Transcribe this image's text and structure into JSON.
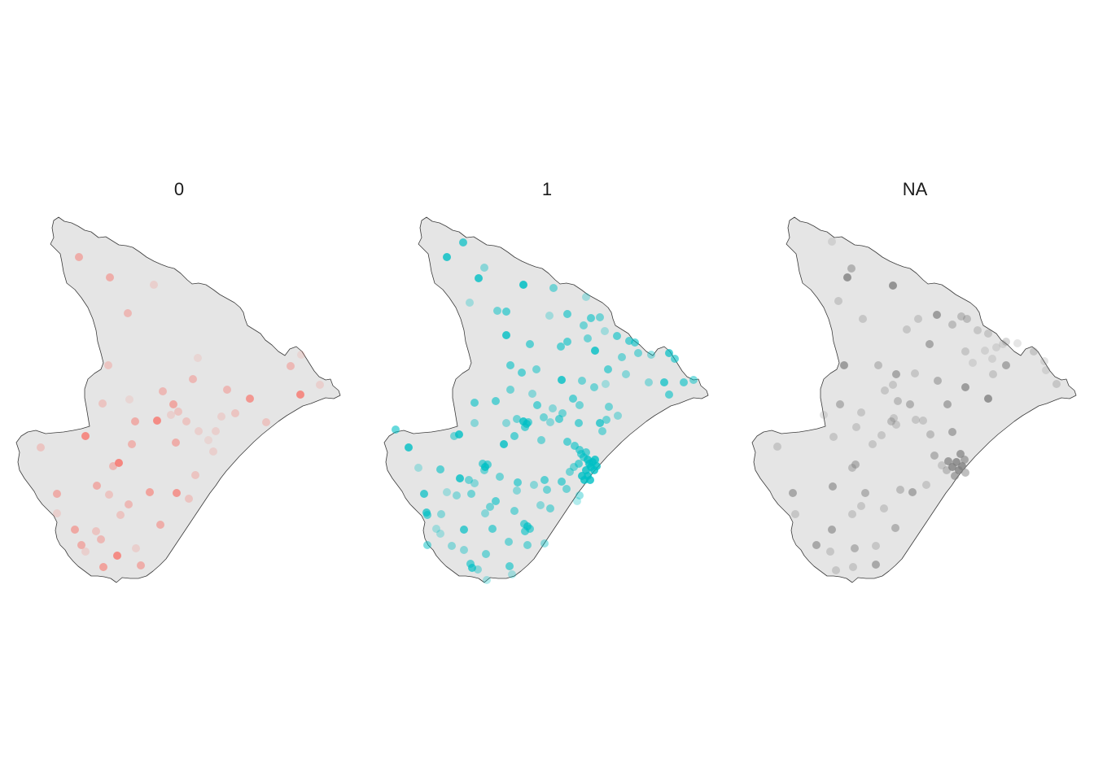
{
  "figure": {
    "background": "#ffffff",
    "region_fill": "#e5e5e5",
    "region_stroke": "#3a3a3a"
  },
  "panels": [
    {
      "title": "0",
      "color": "#f8766d",
      "points": [
        [
          97,
          316,
          0.5
        ],
        [
          135,
          341,
          0.5
        ],
        [
          189,
          350,
          0.2
        ],
        [
          157,
          385,
          0.4
        ],
        [
          133,
          449,
          0.3
        ],
        [
          243,
          440,
          0.15
        ],
        [
          237,
          466,
          0.4
        ],
        [
          200,
          481,
          0.4
        ],
        [
          279,
          479,
          0.4
        ],
        [
          307,
          490,
          0.7
        ],
        [
          357,
          450,
          0.4
        ],
        [
          370,
          436,
          0.15
        ],
        [
          369,
          485,
          0.8
        ],
        [
          393,
          473,
          0.2
        ],
        [
          126,
          496,
          0.3
        ],
        [
          159,
          491,
          0.15
        ],
        [
          213,
          497,
          0.55
        ],
        [
          219,
          506,
          0.3
        ],
        [
          193,
          517,
          0.8
        ],
        [
          166,
          518,
          0.5
        ],
        [
          210,
          510,
          0.2
        ],
        [
          229,
          518,
          0.3
        ],
        [
          244,
          530,
          0.2
        ],
        [
          265,
          530,
          0.2
        ],
        [
          272,
          512,
          0.2
        ],
        [
          289,
          508,
          0.3
        ],
        [
          327,
          519,
          0.3
        ],
        [
          105,
          536,
          0.8
        ],
        [
          162,
          546,
          0.45
        ],
        [
          216,
          544,
          0.5
        ],
        [
          256,
          541,
          0.15
        ],
        [
          262,
          555,
          0.2
        ],
        [
          146,
          569,
          0.85
        ],
        [
          139,
          573,
          0.4
        ],
        [
          240,
          584,
          0.3
        ],
        [
          50,
          550,
          0.3
        ],
        [
          119,
          597,
          0.5
        ],
        [
          134,
          608,
          0.3
        ],
        [
          70,
          607,
          0.5
        ],
        [
          184,
          605,
          0.6
        ],
        [
          217,
          606,
          0.7
        ],
        [
          232,
          613,
          0.3
        ],
        [
          158,
          620,
          0.4
        ],
        [
          70,
          631,
          0.2
        ],
        [
          148,
          633,
          0.3
        ],
        [
          197,
          645,
          0.5
        ],
        [
          124,
          663,
          0.4
        ],
        [
          92,
          651,
          0.55
        ],
        [
          118,
          653,
          0.3
        ],
        [
          167,
          674,
          0.2
        ],
        [
          100,
          670,
          0.5
        ],
        [
          144,
          683,
          0.8
        ],
        [
          105,
          678,
          0.2
        ],
        [
          127,
          697,
          0.6
        ],
        [
          173,
          695,
          0.5
        ]
      ]
    },
    {
      "title": "1",
      "color": "#00bfc4",
      "points": [
        [
          569,
          298,
          0.7
        ],
        [
          549,
          316,
          0.8
        ],
        [
          595,
          329,
          0.4
        ],
        [
          588,
          342,
          0.8
        ],
        [
          643,
          350,
          0.85
        ],
        [
          680,
          354,
          0.5
        ],
        [
          577,
          372,
          0.3
        ],
        [
          611,
          382,
          0.5
        ],
        [
          622,
          383,
          0.6
        ],
        [
          675,
          388,
          0.3
        ],
        [
          697,
          386,
          0.6
        ],
        [
          720,
          365,
          0.3
        ],
        [
          726,
          391,
          0.6
        ],
        [
          737,
          390,
          0.5
        ],
        [
          717,
          400,
          0.5
        ],
        [
          743,
          407,
          0.3
        ],
        [
          622,
          412,
          0.8
        ],
        [
          651,
          423,
          0.6
        ],
        [
          689,
          426,
          0.6
        ],
        [
          697,
          420,
          0.6
        ],
        [
          722,
          416,
          0.5
        ],
        [
          731,
          431,
          0.8
        ],
        [
          758,
          413,
          0.6
        ],
        [
          773,
          419,
          0.6
        ],
        [
          780,
          421,
          0.6
        ],
        [
          784,
          434,
          0.5
        ],
        [
          800,
          436,
          0.4
        ],
        [
          822,
          434,
          0.7
        ],
        [
          829,
          441,
          0.6
        ],
        [
          627,
          449,
          0.6
        ],
        [
          659,
          454,
          0.5
        ],
        [
          641,
          458,
          0.6
        ],
        [
          690,
          467,
          0.8
        ],
        [
          715,
          468,
          0.5
        ],
        [
          747,
          454,
          0.6
        ],
        [
          764,
          439,
          0.5
        ],
        [
          769,
          460,
          0.4
        ],
        [
          797,
          470,
          0.4
        ],
        [
          816,
          470,
          0.7
        ],
        [
          840,
          470,
          0.6
        ],
        [
          852,
          467,
          0.5
        ],
        [
          822,
          485,
          0.6
        ],
        [
          744,
          472,
          0.3
        ],
        [
          583,
          495,
          0.6
        ],
        [
          609,
          493,
          0.6
        ],
        [
          627,
          479,
          0.5
        ],
        [
          654,
          484,
          0.4
        ],
        [
          660,
          498,
          0.6
        ],
        [
          668,
          513,
          0.5
        ],
        [
          679,
          502,
          0.4
        ],
        [
          691,
          508,
          0.5
        ],
        [
          704,
          490,
          0.6
        ],
        [
          712,
          498,
          0.5
        ],
        [
          730,
          476,
          0.5
        ],
        [
          748,
          500,
          0.5
        ],
        [
          737,
          520,
          0.7
        ],
        [
          740,
          530,
          0.5
        ],
        [
          745,
          516,
          0.5
        ],
        [
          759,
          511,
          0.4
        ],
        [
          564,
          534,
          0.8
        ],
        [
          558,
          536,
          0.5
        ],
        [
          583,
          520,
          0.4
        ],
        [
          622,
          520,
          0.4
        ],
        [
          635,
          515,
          0.5
        ],
        [
          643,
          518,
          0.8
        ],
        [
          647,
          521,
          0.7
        ],
        [
          645,
          525,
          0.6
        ],
        [
          649,
          519,
          0.6
        ],
        [
          676,
          519,
          0.4
        ],
        [
          687,
          515,
          0.6
        ],
        [
          711,
          520,
          0.6
        ],
        [
          486,
          528,
          0.6
        ],
        [
          502,
          550,
          0.8
        ],
        [
          632,
          536,
          0.6
        ],
        [
          665,
          541,
          0.5
        ],
        [
          697,
          543,
          0.6
        ],
        [
          706,
          548,
          0.6
        ],
        [
          712,
          553,
          0.6
        ],
        [
          714,
          558,
          0.6
        ],
        [
          717,
          562,
          0.6
        ],
        [
          720,
          556,
          0.6
        ],
        [
          722,
          565,
          0.8
        ],
        [
          724,
          570,
          0.8
        ],
        [
          726,
          574,
          0.8
        ],
        [
          728,
          568,
          0.8
        ],
        [
          730,
          578,
          0.8
        ],
        [
          720,
          578,
          0.8
        ],
        [
          715,
          585,
          0.8
        ],
        [
          722,
          585,
          0.8
        ],
        [
          718,
          590,
          0.8
        ],
        [
          725,
          590,
          0.8
        ],
        [
          731,
          565,
          0.8
        ],
        [
          733,
          573,
          0.8
        ],
        [
          711,
          570,
          0.6
        ],
        [
          705,
          574,
          0.5
        ],
        [
          700,
          580,
          0.5
        ],
        [
          619,
          546,
          0.8
        ],
        [
          593,
          570,
          0.6
        ],
        [
          596,
          574,
          0.8
        ],
        [
          599,
          571,
          0.6
        ],
        [
          595,
          578,
          0.5
        ],
        [
          514,
          575,
          0.3
        ],
        [
          541,
          577,
          0.6
        ],
        [
          565,
          588,
          0.8
        ],
        [
          576,
          590,
          0.5
        ],
        [
          583,
          594,
          0.4
        ],
        [
          614,
          586,
          0.5
        ],
        [
          636,
          593,
          0.6
        ],
        [
          656,
          596,
          0.4
        ],
        [
          635,
          603,
          0.4
        ],
        [
          669,
          590,
          0.6
        ],
        [
          672,
          602,
          0.5
        ],
        [
          690,
          592,
          0.6
        ],
        [
          696,
          601,
          0.5
        ],
        [
          712,
          609,
          0.4
        ],
        [
          709,
          616,
          0.3
        ],
        [
          521,
          607,
          0.7
        ],
        [
          549,
          605,
          0.3
        ],
        [
          561,
          609,
          0.4
        ],
        [
          579,
          607,
          0.5
        ],
        [
          609,
          616,
          0.6
        ],
        [
          602,
          623,
          0.5
        ],
        [
          596,
          631,
          0.4
        ],
        [
          524,
          630,
          0.7
        ],
        [
          525,
          633,
          0.6
        ],
        [
          542,
          632,
          0.4
        ],
        [
          632,
          628,
          0.5
        ],
        [
          664,
          621,
          0.4
        ],
        [
          676,
          625,
          0.5
        ],
        [
          644,
          644,
          0.6
        ],
        [
          648,
          647,
          0.7
        ],
        [
          651,
          650,
          0.6
        ],
        [
          645,
          653,
          0.6
        ],
        [
          536,
          650,
          0.3
        ],
        [
          541,
          656,
          0.3
        ],
        [
          570,
          651,
          0.7
        ],
        [
          605,
          650,
          0.6
        ],
        [
          625,
          666,
          0.5
        ],
        [
          648,
          670,
          0.5
        ],
        [
          669,
          668,
          0.4
        ],
        [
          525,
          670,
          0.5
        ],
        [
          555,
          671,
          0.4
        ],
        [
          570,
          676,
          0.4
        ],
        [
          597,
          681,
          0.5
        ],
        [
          578,
          693,
          0.6
        ],
        [
          580,
          698,
          0.7
        ],
        [
          587,
          700,
          0.4
        ],
        [
          626,
          696,
          0.6
        ],
        [
          629,
          706,
          0.3
        ],
        [
          598,
          713,
          0.3
        ]
      ]
    },
    {
      "title": "NA",
      "color": "#7f7f7f",
      "points": [
        [
          1022,
          297,
          0.2
        ],
        [
          1046,
          330,
          0.5
        ],
        [
          1041,
          341,
          0.8
        ],
        [
          1097,
          351,
          0.8
        ],
        [
          1030,
          370,
          0.3
        ],
        [
          1151,
          387,
          0.7
        ],
        [
          1181,
          389,
          0.4
        ],
        [
          1188,
          392,
          0.4
        ],
        [
          1201,
          406,
          0.3
        ],
        [
          1060,
          392,
          0.3
        ],
        [
          1114,
          405,
          0.3
        ],
        [
          1128,
          392,
          0.3
        ],
        [
          1142,
          423,
          0.6
        ],
        [
          1170,
          399,
          0.4
        ],
        [
          1214,
          410,
          0.3
        ],
        [
          1224,
          427,
          0.2
        ],
        [
          1232,
          423,
          0.2
        ],
        [
          1236,
          420,
          0.3
        ],
        [
          1250,
          422,
          0.2
        ],
        [
          1186,
          432,
          0.3
        ],
        [
          1195,
          446,
          0.2
        ],
        [
          1210,
          431,
          0.2
        ],
        [
          1219,
          441,
          0.2
        ],
        [
          1236,
          449,
          0.6
        ],
        [
          1270,
          432,
          0.3
        ],
        [
          1283,
          444,
          0.2
        ],
        [
          1285,
          455,
          0.2
        ],
        [
          1220,
          460,
          0.3
        ],
        [
          1037,
          449,
          0.7
        ],
        [
          1079,
          449,
          0.4
        ],
        [
          1101,
          460,
          0.6
        ],
        [
          1097,
          473,
          0.3
        ],
        [
          1124,
          459,
          0.3
        ],
        [
          1152,
          468,
          0.5
        ],
        [
          1186,
          476,
          0.7
        ],
        [
          1298,
          472,
          0.3
        ],
        [
          1032,
          497,
          0.5
        ],
        [
          1087,
          480,
          0.3
        ],
        [
          1103,
          493,
          0.4
        ],
        [
          1118,
          497,
          0.5
        ],
        [
          1095,
          518,
          0.4
        ],
        [
          1101,
          522,
          0.3
        ],
        [
          1098,
          514,
          0.3
        ],
        [
          1125,
          516,
          0.3
        ],
        [
          1134,
          517,
          0.3
        ],
        [
          1164,
          497,
          0.6
        ],
        [
          1214,
          490,
          0.8
        ],
        [
          1012,
          510,
          0.2
        ],
        [
          1058,
          507,
          0.3
        ],
        [
          1052,
          525,
          0.3
        ],
        [
          1143,
          534,
          0.4
        ],
        [
          1170,
          531,
          0.6
        ],
        [
          1083,
          535,
          0.3
        ],
        [
          1072,
          546,
          0.3
        ],
        [
          1024,
          537,
          0.3
        ],
        [
          955,
          549,
          0.3
        ],
        [
          1148,
          560,
          0.5
        ],
        [
          1165,
          567,
          0.7
        ],
        [
          1170,
          574,
          0.8
        ],
        [
          1175,
          568,
          0.8
        ],
        [
          1178,
          578,
          0.8
        ],
        [
          1182,
          573,
          0.8
        ],
        [
          1185,
          565,
          0.6
        ],
        [
          1180,
          558,
          0.7
        ],
        [
          1173,
          585,
          0.6
        ],
        [
          1186,
          581,
          0.5
        ],
        [
          1163,
          578,
          0.4
        ],
        [
          1157,
          572,
          0.3
        ],
        [
          1051,
          571,
          0.5
        ],
        [
          1047,
          575,
          0.4
        ],
        [
          1023,
          598,
          0.6
        ],
        [
          1106,
          602,
          0.4
        ],
        [
          1121,
          605,
          0.6
        ],
        [
          1138,
          596,
          0.3
        ],
        [
          974,
          606,
          0.6
        ],
        [
          1063,
          606,
          0.5
        ],
        [
          1047,
          632,
          0.3
        ],
        [
          1058,
          622,
          0.3
        ],
        [
          1086,
          625,
          0.3
        ],
        [
          1022,
          651,
          0.6
        ],
        [
          1100,
          649,
          0.5
        ],
        [
          977,
          632,
          0.3
        ],
        [
          1003,
          670,
          0.6
        ],
        [
          1050,
          674,
          0.5
        ],
        [
          1076,
          671,
          0.3
        ],
        [
          1020,
          678,
          0.3
        ],
        [
          1076,
          694,
          0.6
        ],
        [
          1048,
          697,
          0.3
        ],
        [
          1027,
          701,
          0.3
        ]
      ]
    }
  ]
}
